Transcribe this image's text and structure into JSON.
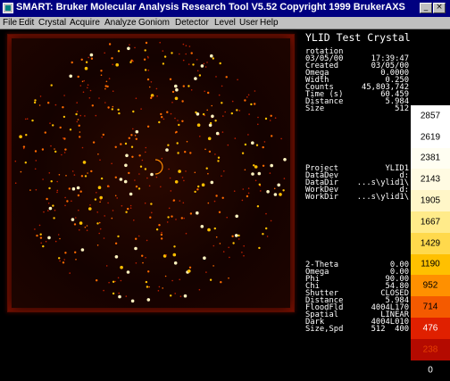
{
  "window": {
    "title": "SMART: Bruker Molecular Analysis Research Tool V5.52 Copyright 1999 BrukerAXS",
    "minimize_glyph": "_",
    "close_glyph": "×"
  },
  "menu": [
    {
      "label": "File",
      "name": "menu-file"
    },
    {
      "label": "Edit",
      "name": "menu-edit"
    },
    {
      "label": "Crystal",
      "name": "menu-crystal"
    },
    {
      "label": "Acquire",
      "name": "menu-acquire"
    },
    {
      "label": "Analyze",
      "name": "menu-analyze"
    },
    {
      "label": "Goniom",
      "name": "menu-goniom"
    },
    {
      "label": "Detector",
      "name": "menu-detector"
    },
    {
      "label": "Level",
      "name": "menu-level"
    },
    {
      "label": "User",
      "name": "menu-user"
    },
    {
      "label": "Help",
      "name": "menu-help"
    }
  ],
  "info": {
    "title": "YLID Test Crystal",
    "frame": [
      {
        "k": "rotation",
        "v": ""
      },
      {
        "k": "03/05/00",
        "v": "17:39:47"
      },
      {
        "k": "Created",
        "v": "03/05/00"
      },
      {
        "k": "Omega",
        "v": "0.0000"
      },
      {
        "k": "Width",
        "v": "0.250"
      },
      {
        "k": "Counts",
        "v": "45,803,742"
      },
      {
        "k": "Time (s)",
        "v": "60.459"
      },
      {
        "k": "Distance",
        "v": "5.984"
      },
      {
        "k": "Size",
        "v": "512"
      }
    ],
    "project": [
      {
        "k": "Project",
        "v": "YLID1"
      },
      {
        "k": "DataDev",
        "v": "d:"
      },
      {
        "k": "DataDir",
        "v": "...s\\ylid1\\"
      },
      {
        "k": "WorkDev",
        "v": "d:"
      },
      {
        "k": "WorkDir",
        "v": "...s\\ylid1\\"
      }
    ],
    "goniometer": [
      {
        "k": "2-Theta",
        "v": "0.00"
      },
      {
        "k": "Omega",
        "v": "0.00"
      },
      {
        "k": "Phi",
        "v": "90.00"
      },
      {
        "k": "Chi",
        "v": "54.80"
      },
      {
        "k": "Shutter",
        "v": "CLOSED"
      },
      {
        "k": "Distance",
        "v": "5.984"
      },
      {
        "k": "FloodFld",
        "v": "4004L170"
      },
      {
        "k": "Spatial",
        "v": "LINEAR"
      },
      {
        "k": "Dark",
        "v": "4004L010"
      },
      {
        "k": "Size,Spd",
        "v": "512  400"
      }
    ]
  },
  "colorbar": [
    {
      "value": "2857",
      "color": "#ffffff",
      "text": "#000000"
    },
    {
      "value": "2619",
      "color": "#ffffff",
      "text": "#000000"
    },
    {
      "value": "2381",
      "color": "#fffef2",
      "text": "#000000"
    },
    {
      "value": "2143",
      "color": "#fffbe2",
      "text": "#000000"
    },
    {
      "value": "1905",
      "color": "#fff6c8",
      "text": "#000000"
    },
    {
      "value": "1667",
      "color": "#ffeb8a",
      "text": "#000000"
    },
    {
      "value": "1429",
      "color": "#ffd94c",
      "text": "#000000"
    },
    {
      "value": "1190",
      "color": "#ffc000",
      "text": "#000000"
    },
    {
      "value": "952",
      "color": "#ff9000",
      "text": "#000000"
    },
    {
      "value": "714",
      "color": "#f45a00",
      "text": "#000000"
    },
    {
      "value": "476",
      "color": "#e02000",
      "text": "#ffffff"
    },
    {
      "value": "238",
      "color": "#b40a00",
      "text": "#e64000"
    },
    {
      "value": "0",
      "color": "#000000",
      "text": "#ffffff"
    }
  ]
}
